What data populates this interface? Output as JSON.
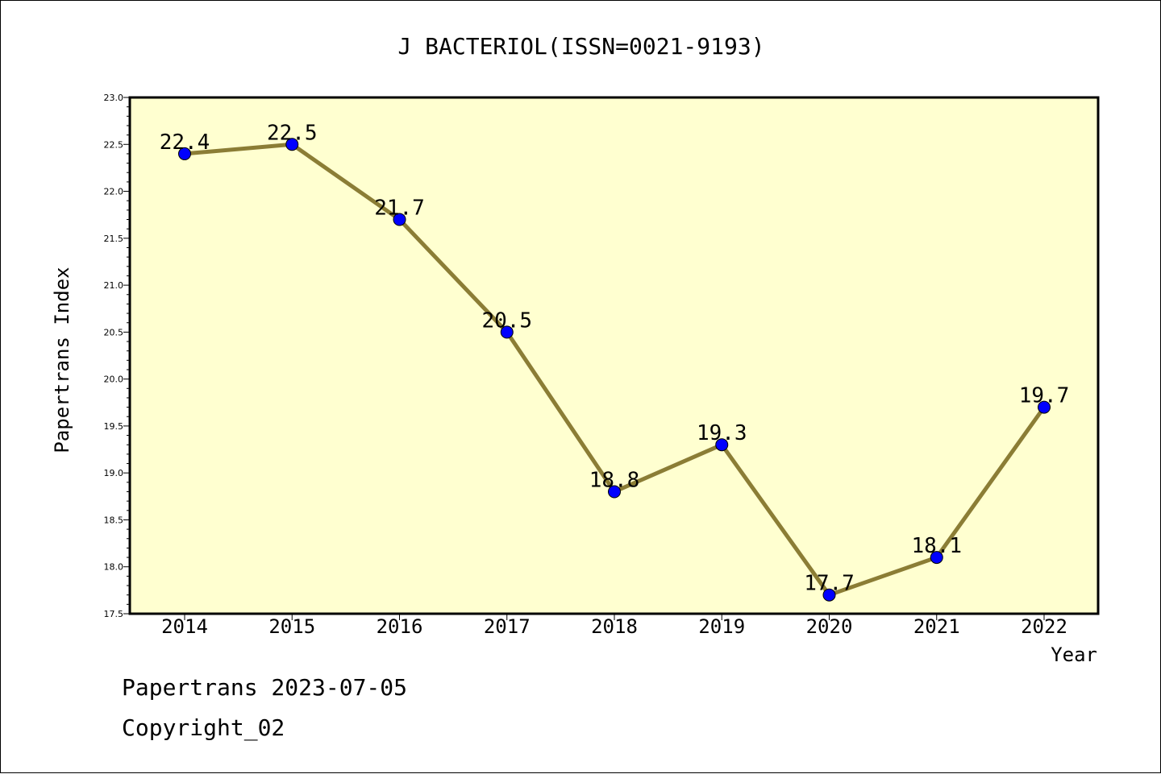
{
  "chart_data": {
    "type": "line",
    "title": "J BACTERIOL(ISSN=0021-9193)",
    "xlabel": "Year",
    "ylabel": "Papertrans Index",
    "categories": [
      "2014",
      "2015",
      "2016",
      "2017",
      "2018",
      "2019",
      "2020",
      "2021",
      "2022"
    ],
    "values": [
      22.4,
      22.5,
      21.7,
      20.5,
      18.8,
      19.3,
      17.7,
      18.1,
      19.7
    ],
    "data_labels": [
      "22.4",
      "22.5",
      "21.7",
      "20.5",
      "18.8",
      "19.3",
      "17.7",
      "18.1",
      "19.7"
    ],
    "ylim": [
      17.5,
      23.0
    ],
    "yticks": [
      "17.5",
      "18.0",
      "18.5",
      "19.0",
      "19.5",
      "20.0",
      "20.5",
      "21.0",
      "21.5",
      "22.0",
      "22.5",
      "23.0"
    ],
    "grid": false,
    "colors": {
      "plot_background": "#ffffd0",
      "line": "#8b7d35",
      "marker": "#0000ff"
    }
  },
  "footer": {
    "line1": "Papertrans 2023-07-05",
    "line2": "Copyright_02"
  }
}
